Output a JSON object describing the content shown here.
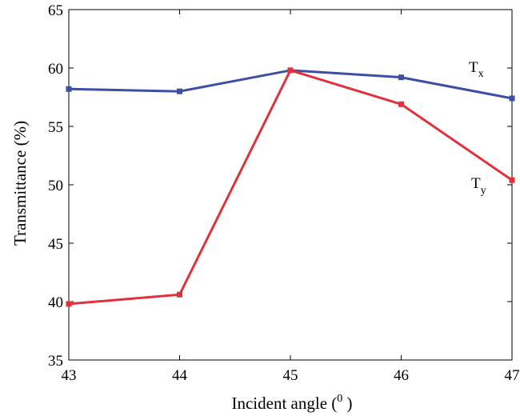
{
  "chart_data": {
    "type": "line",
    "title": "",
    "xlabel": "Incident angle (",
    "xlabel_superscript": "0",
    "xlabel_suffix": " )",
    "ylabel": "Transmittance (%)",
    "x": [
      43,
      44,
      45,
      46,
      47
    ],
    "xlim": [
      43,
      47
    ],
    "ylim": [
      35,
      65
    ],
    "xticks": [
      "43",
      "44",
      "45",
      "46",
      "47"
    ],
    "yticks": [
      "35",
      "40",
      "45",
      "50",
      "55",
      "60",
      "65"
    ],
    "grid": false,
    "legend": "none",
    "series": [
      {
        "name": "T",
        "subscript": "x",
        "color": "#3c4fa3",
        "values": [
          58.2,
          58.0,
          59.8,
          59.2,
          57.4
        ]
      },
      {
        "name": "T",
        "subscript": "y",
        "color": "#e0323a",
        "values": [
          39.8,
          40.6,
          59.8,
          56.9,
          50.4
        ]
      }
    ]
  }
}
